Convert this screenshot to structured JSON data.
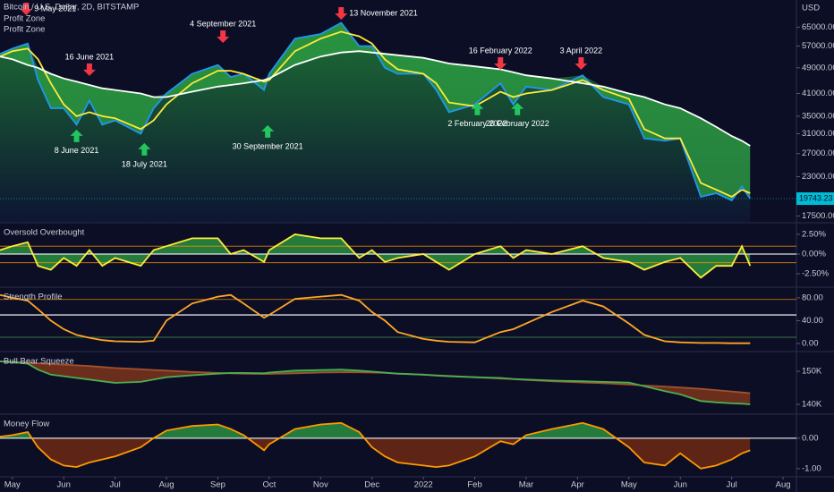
{
  "title": "Bitcoin / U.S. Dollar, 2D, BITSTAMP",
  "legend": [
    "Profit Zone",
    "Profit Zone"
  ],
  "currency": "USD",
  "time_axis": {
    "x": [
      -0.24,
      0,
      0.3,
      0.5,
      0.75,
      1,
      1.25,
      1.5,
      1.75,
      2,
      2.5,
      2.75,
      3,
      3.5,
      4,
      4.25,
      4.5,
      4.9,
      5,
      5.5,
      6,
      6.4,
      6.75,
      7,
      7.25,
      7.5,
      8,
      8.25,
      8.5,
      9,
      9.5,
      9.75,
      10,
      10.5,
      11.1,
      11.5,
      12,
      12.3,
      12.7,
      13,
      13.4,
      13.7,
      14,
      14.2,
      14.36
    ],
    "xlim": [
      -0.24,
      15.26
    ],
    "xticks": [
      {
        "value": 0,
        "label": "May"
      },
      {
        "value": 1,
        "label": "Jun"
      },
      {
        "value": 2,
        "label": "Jul"
      },
      {
        "value": 3,
        "label": "Aug"
      },
      {
        "value": 4,
        "label": "Sep"
      },
      {
        "value": 5,
        "label": "Oct"
      },
      {
        "value": 6,
        "label": "Nov"
      },
      {
        "value": 7,
        "label": "Dec"
      },
      {
        "value": 8,
        "label": "2022"
      },
      {
        "value": 9,
        "label": "Feb"
      },
      {
        "value": 10,
        "label": "Mar"
      },
      {
        "value": 11,
        "label": "Apr"
      },
      {
        "value": 12,
        "label": "May"
      },
      {
        "value": 13,
        "label": "Jun"
      },
      {
        "value": 14,
        "label": "Jul"
      },
      {
        "value": 15,
        "label": "Aug"
      }
    ]
  },
  "chart_data": [
    {
      "type": "line",
      "log": true,
      "ylim": [
        16800,
        78500
      ],
      "yticks": [
        {
          "value": 65000,
          "label": "65000.00"
        },
        {
          "value": 57000,
          "label": "57000.00"
        },
        {
          "value": 49000,
          "label": "49000.00"
        },
        {
          "value": 41000,
          "label": "41000.00"
        },
        {
          "value": 35000,
          "label": "35000.00"
        },
        {
          "value": 31000,
          "label": "31000.00"
        },
        {
          "value": 27000,
          "label": "27000.00"
        },
        {
          "value": 23000,
          "label": "23000.00"
        },
        {
          "value": 17500,
          "label": "17500.00"
        }
      ],
      "series": [
        {
          "color": "#2196f3",
          "values": [
            54000,
            56000,
            58000,
            45000,
            37000,
            37000,
            33000,
            39000,
            33000,
            34000,
            31000,
            37000,
            41000,
            47000,
            50000,
            46000,
            47000,
            42000,
            47000,
            60000,
            62000,
            67000,
            57000,
            57000,
            49000,
            47000,
            47000,
            42000,
            36000,
            38000,
            44000,
            38000,
            43000,
            42000,
            46500,
            40000,
            38000,
            30000,
            29500,
            30000,
            20000,
            20500,
            19500,
            21500,
            19743
          ]
        },
        {
          "color": "#ffeb3b",
          "values": [
            53000,
            55000,
            56000,
            52000,
            44000,
            38000,
            35000,
            36000,
            35000,
            34500,
            32000,
            34000,
            38000,
            44000,
            48000,
            48000,
            47000,
            44500,
            45000,
            55000,
            60000,
            63000,
            61000,
            58000,
            52000,
            48500,
            47000,
            44000,
            38500,
            37500,
            41500,
            40000,
            41000,
            42000,
            45000,
            42000,
            39500,
            32000,
            30000,
            30000,
            22000,
            21000,
            20000,
            21000,
            20500
          ]
        },
        {
          "color": "#ffffff",
          "values": [
            53000,
            52000,
            50000,
            49000,
            47000,
            45500,
            44500,
            43500,
            42500,
            42000,
            41000,
            40000,
            40000,
            41500,
            43000,
            43500,
            44000,
            45000,
            45500,
            50000,
            53000,
            54500,
            55000,
            54500,
            54000,
            53500,
            52500,
            51500,
            50500,
            49500,
            48500,
            47500,
            46500,
            45500,
            44000,
            43000,
            41000,
            40000,
            38000,
            37000,
            34500,
            32500,
            30500,
            29500,
            28500
          ]
        }
      ],
      "fill": {
        "series": 0,
        "base_series": 2,
        "above": "#2ea043",
        "below": "#2ea043",
        "gradient": [
          "#1f7a36",
          "#0d1633"
        ]
      },
      "annotations": [
        {
          "label": "9 May 2021",
          "x": 0.27,
          "y": 70600,
          "color": "#f23645"
        },
        {
          "label": "16 June 2021",
          "x": 1.5,
          "y": 46300,
          "color": "#f23645"
        },
        {
          "label": "8 June 2021",
          "x": 1.25,
          "y": 31900,
          "color": "#22c55e"
        },
        {
          "label": "18 July 2021",
          "x": 2.57,
          "y": 29050,
          "color": "#22c55e"
        },
        {
          "label": "4 September 2021",
          "x": 4.1,
          "y": 58250,
          "color": "#f23645"
        },
        {
          "label": "30 September 2021",
          "x": 4.97,
          "y": 32900,
          "color": "#22c55e"
        },
        {
          "label": "13 November 2021",
          "x": 6.4,
          "y": 68450,
          "color": "#f23645"
        },
        {
          "label": "2 February 2022",
          "x": 9.05,
          "y": 38450,
          "color": "#22c55e"
        },
        {
          "label": "16 February 2022",
          "x": 9.5,
          "y": 48350,
          "color": "#f23645"
        },
        {
          "label": "26 February 2022",
          "x": 9.83,
          "y": 38450,
          "color": "#22c55e"
        },
        {
          "label": "3 April 2022",
          "x": 11.07,
          "y": 48350,
          "color": "#f23645"
        }
      ],
      "last_value": {
        "value": 19743.23,
        "label": "19743.23",
        "color": "#00bcd4"
      }
    },
    {
      "type": "line",
      "title": "Oversold Overbought",
      "ylim": [
        -4.09,
        3.86
      ],
      "yticks": [
        {
          "value": 2.5,
          "label": "2.50%"
        },
        {
          "value": 0,
          "label": "0.00%"
        },
        {
          "value": -2.5,
          "label": "-2.50%"
        }
      ],
      "hlines": [
        {
          "value": 1,
          "color": "#ff9800"
        },
        {
          "value": 0,
          "color": "#ffffff"
        },
        {
          "value": -1.1,
          "color": "#ff9800"
        }
      ],
      "series": [
        {
          "color": "#ffeb3b",
          "values": [
            0.5,
            1,
            1.5,
            -1.5,
            -2,
            -0.5,
            -1.5,
            0.5,
            -1.5,
            -0.5,
            -1.5,
            0.5,
            1,
            2,
            2,
            0,
            0.5,
            -1,
            0.5,
            2.5,
            2,
            2,
            -0.5,
            0.5,
            -1,
            -0.5,
            0,
            -1,
            -2,
            0,
            1,
            -0.5,
            0.5,
            0,
            1,
            -0.5,
            -1,
            -2,
            -1,
            -0.5,
            -3,
            -1.5,
            -1.5,
            1,
            -1.5
          ]
        }
      ],
      "fill": {
        "series": 0,
        "base": 0,
        "above": "#2ea043",
        "below": "#2ea043"
      }
    },
    {
      "type": "line",
      "title": "Strength Profile",
      "ylim": [
        -12.5,
        97
      ],
      "yticks": [
        {
          "value": 80,
          "label": "80.00"
        },
        {
          "value": 40,
          "label": "40.00"
        },
        {
          "value": 0,
          "label": "0.00"
        }
      ],
      "hlines": [
        {
          "value": 77,
          "color": "#ff9800"
        },
        {
          "value": 50,
          "color": "#ffffff"
        },
        {
          "value": 11,
          "color": "#4caf50"
        }
      ],
      "series": [
        {
          "color": "#ffa726",
          "values": [
            85,
            80,
            75,
            60,
            40,
            25,
            15,
            10,
            6,
            4,
            3,
            5,
            40,
            70,
            82,
            85,
            70,
            45,
            50,
            78,
            82,
            85,
            75,
            55,
            40,
            20,
            8,
            5,
            3,
            2,
            20,
            25,
            35,
            55,
            75,
            65,
            35,
            15,
            4,
            2,
            1,
            1,
            0.5,
            0.5,
            0.5
          ]
        }
      ]
    },
    {
      "type": "line",
      "title": "Bull Bear Squeeze",
      "ylim": [
        137300,
        155700
      ],
      "yticks": [
        {
          "value": 150000,
          "label": "150K"
        },
        {
          "value": 140000,
          "label": "140K"
        }
      ],
      "series": [
        {
          "color": "#a0522d",
          "values": [
            153000,
            152800,
            152600,
            152400,
            152200,
            152000,
            151800,
            151600,
            151300,
            151000,
            150600,
            150400,
            150200,
            149800,
            149500,
            149400,
            149300,
            149200,
            149200,
            149400,
            149600,
            149700,
            149700,
            149600,
            149500,
            149300,
            149000,
            148800,
            148600,
            148200,
            147800,
            147600,
            147400,
            147000,
            146600,
            146400,
            146000,
            145700,
            145400,
            145100,
            144700,
            144300,
            143900,
            143600,
            143400
          ]
        },
        {
          "color": "#4caf50",
          "values": [
            153000,
            152800,
            152300,
            150500,
            149000,
            148500,
            148000,
            147500,
            147000,
            146500,
            146800,
            147500,
            148200,
            148800,
            149300,
            149500,
            149500,
            149400,
            149600,
            150200,
            150400,
            150500,
            150200,
            149900,
            149600,
            149300,
            149000,
            148700,
            148500,
            148200,
            148000,
            147700,
            147500,
            147200,
            147000,
            146800,
            146600,
            145500,
            144000,
            143000,
            141000,
            140600,
            140300,
            140200,
            140000
          ]
        }
      ],
      "fill": {
        "series": 1,
        "base_series": 0,
        "above": "#2e7d32",
        "below": "#8b3a1a"
      }
    },
    {
      "type": "line",
      "title": "Money Flow",
      "ylim": [
        -1.24,
        0.76
      ],
      "yticks": [
        {
          "value": 0,
          "label": "0.00"
        },
        {
          "value": -1,
          "label": "-1.00"
        }
      ],
      "hlines": [
        {
          "value": 0,
          "color": "#ffffff"
        }
      ],
      "series": [
        {
          "color": "#ff9800",
          "values": [
            0.05,
            0.1,
            0.2,
            -0.3,
            -0.7,
            -0.9,
            -0.95,
            -0.8,
            -0.7,
            -0.6,
            -0.3,
            0,
            0.25,
            0.4,
            0.45,
            0.3,
            0.1,
            -0.4,
            -0.2,
            0.3,
            0.45,
            0.5,
            0.2,
            -0.3,
            -0.6,
            -0.8,
            -0.9,
            -0.95,
            -0.9,
            -0.6,
            -0.1,
            -0.2,
            0.1,
            0.3,
            0.5,
            0.3,
            -0.3,
            -0.8,
            -0.9,
            -0.5,
            -1,
            -0.9,
            -0.7,
            -0.5,
            -0.4
          ]
        }
      ],
      "fill": {
        "series": 0,
        "base": 0,
        "above": "#2ea043",
        "below": "#7a2e12"
      }
    }
  ]
}
